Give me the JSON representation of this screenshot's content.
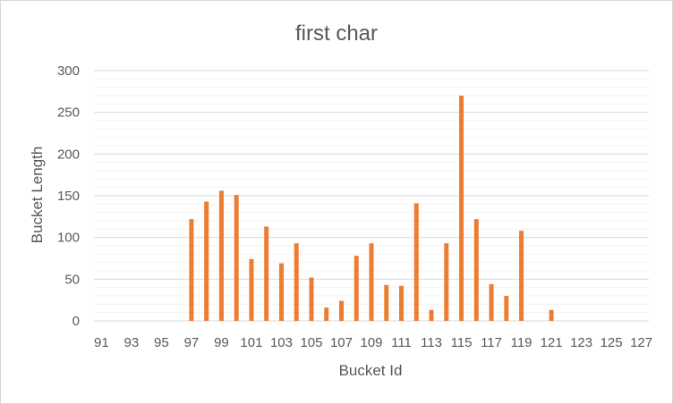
{
  "chart_data": {
    "type": "bar",
    "title": "first char",
    "xlabel": "Bucket Id",
    "ylabel": "Bucket Length",
    "ylim": [
      0,
      300
    ],
    "yticks": [
      0,
      50,
      100,
      150,
      200,
      250,
      300
    ],
    "x_tick_labels": [
      "91",
      "93",
      "95",
      "97",
      "99",
      "101",
      "103",
      "105",
      "107",
      "109",
      "111",
      "113",
      "115",
      "117",
      "119",
      "121",
      "123",
      "125",
      "127"
    ],
    "categories": [
      91,
      92,
      93,
      94,
      95,
      96,
      97,
      98,
      99,
      100,
      101,
      102,
      103,
      104,
      105,
      106,
      107,
      108,
      109,
      110,
      111,
      112,
      113,
      114,
      115,
      116,
      117,
      118,
      119,
      120,
      121,
      122,
      123,
      124,
      125,
      126,
      127
    ],
    "values": [
      0,
      0,
      0,
      0,
      0,
      0,
      122,
      143,
      156,
      151,
      74,
      113,
      69,
      93,
      52,
      16,
      24,
      78,
      93,
      43,
      42,
      141,
      13,
      93,
      270,
      122,
      44,
      30,
      108,
      0,
      13,
      0,
      0,
      0,
      0,
      0,
      0
    ],
    "grid": "major and minor horizontal",
    "legend": "none",
    "colors": {
      "bar": "#ed7d31",
      "grid_major": "#d9d9d9",
      "grid_minor": "#f2f2f2",
      "text": "#595959"
    }
  }
}
